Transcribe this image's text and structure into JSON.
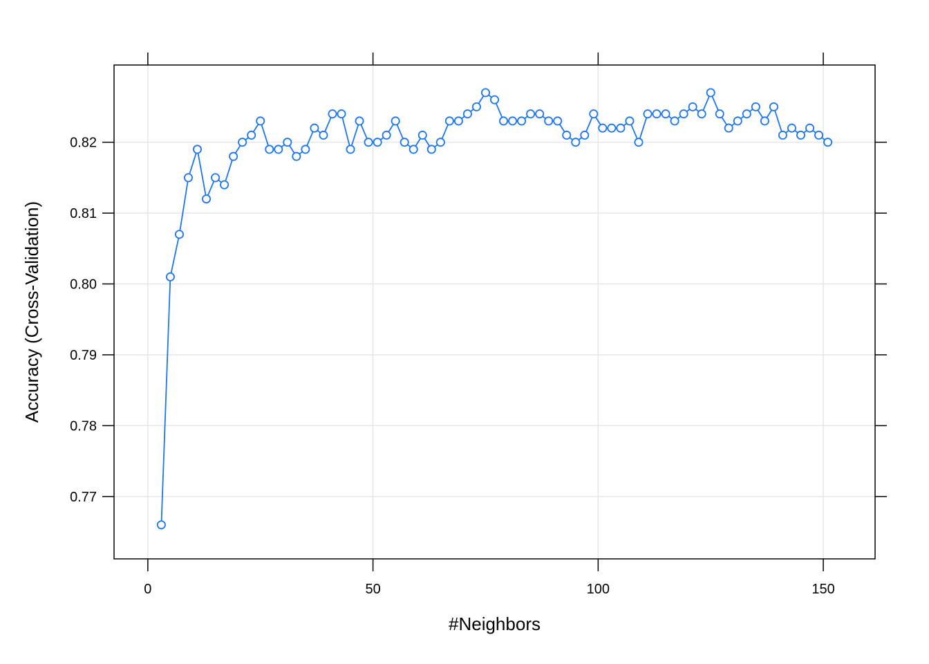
{
  "chart_data": {
    "type": "line",
    "title": "",
    "xlabel": "#Neighbors",
    "ylabel": "Accuracy (Cross-Validation)",
    "xlim": [
      -7.5,
      161.5
    ],
    "ylim": [
      0.7612,
      0.8309
    ],
    "xticks": [
      0,
      50,
      100,
      150
    ],
    "xtick_labels": [
      "0",
      "50",
      "100",
      "150"
    ],
    "yticks": [
      0.77,
      0.78,
      0.79,
      0.8,
      0.81,
      0.82
    ],
    "ytick_labels": [
      "0.77",
      "0.78",
      "0.79",
      "0.80",
      "0.81",
      "0.82"
    ],
    "grid": true,
    "legend": "none",
    "colors": {
      "series": "#1a75f0",
      "grid": "#e6e6e6",
      "frame": "#000000"
    },
    "series": [
      {
        "marker": "open-circle",
        "x": [
          3,
          5,
          7,
          9,
          11,
          13,
          15,
          17,
          19,
          21,
          23,
          25,
          27,
          29,
          31,
          33,
          35,
          37,
          39,
          41,
          43,
          45,
          47,
          49,
          51,
          53,
          55,
          57,
          59,
          61,
          63,
          65,
          67,
          69,
          71,
          73,
          75,
          77,
          79,
          81,
          83,
          85,
          87,
          89,
          91,
          93,
          95,
          97,
          99,
          101,
          103,
          105,
          107,
          109,
          111,
          113,
          115,
          117,
          119,
          121,
          123,
          125,
          127,
          129,
          131,
          133,
          135,
          137,
          139,
          141,
          143,
          145,
          147,
          149,
          151
        ],
        "y": [
          0.766,
          0.801,
          0.807,
          0.815,
          0.819,
          0.812,
          0.815,
          0.814,
          0.818,
          0.82,
          0.821,
          0.823,
          0.819,
          0.819,
          0.82,
          0.818,
          0.819,
          0.822,
          0.821,
          0.824,
          0.824,
          0.819,
          0.823,
          0.82,
          0.82,
          0.821,
          0.823,
          0.82,
          0.819,
          0.821,
          0.819,
          0.82,
          0.823,
          0.823,
          0.824,
          0.825,
          0.827,
          0.826,
          0.823,
          0.823,
          0.823,
          0.824,
          0.824,
          0.823,
          0.823,
          0.821,
          0.82,
          0.821,
          0.824,
          0.822,
          0.822,
          0.822,
          0.823,
          0.82,
          0.824,
          0.824,
          0.824,
          0.823,
          0.824,
          0.825,
          0.824,
          0.827,
          0.824,
          0.822,
          0.823,
          0.824,
          0.825,
          0.823,
          0.825,
          0.821,
          0.822,
          0.821,
          0.822,
          0.821,
          0.82
        ]
      }
    ]
  }
}
